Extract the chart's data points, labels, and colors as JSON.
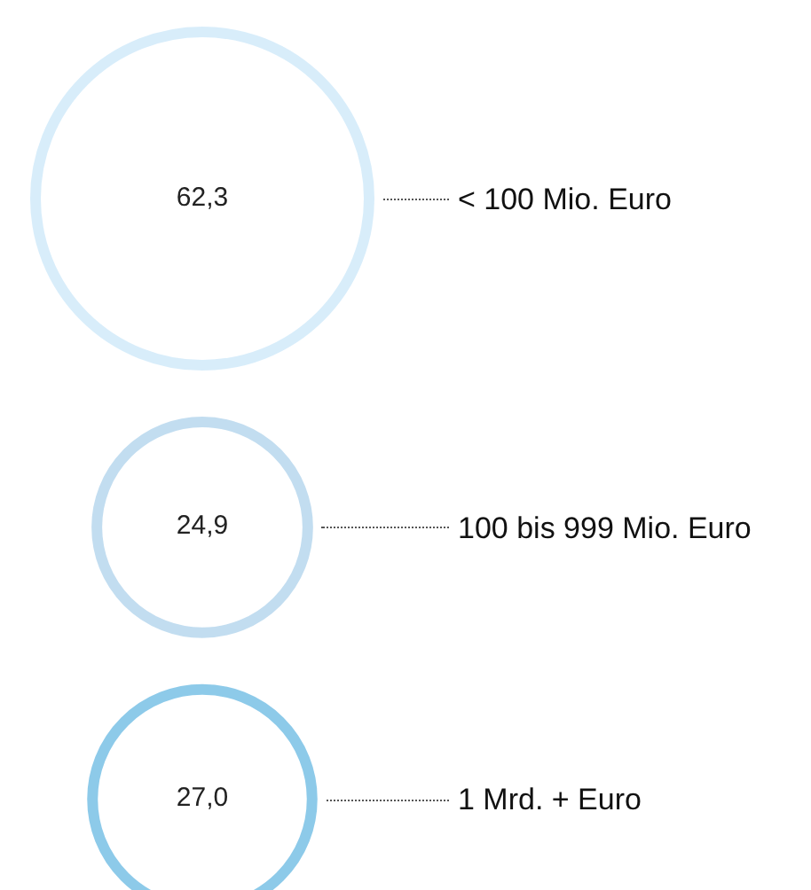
{
  "chart_data": {
    "type": "other",
    "categories": [
      "< 100 Mio. Euro",
      "100 bis 999 Mio. Euro",
      "1 Mrd. + Euro"
    ],
    "values": [
      62.3,
      24.9,
      27.0
    ],
    "value_labels": [
      "62,3",
      "24,9",
      "27,0"
    ],
    "colors": [
      "#c8e6f9",
      "#a9cfea",
      "#5db4e1"
    ]
  }
}
